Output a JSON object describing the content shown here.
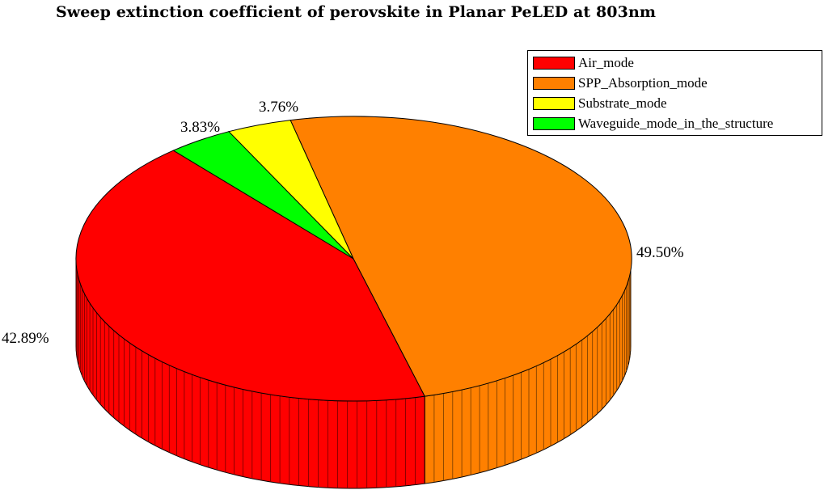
{
  "chart_data": {
    "type": "pie",
    "title": "Sweep extinction coefficient of perovskite in Planar PeLED at 803nm",
    "slices": [
      {
        "name": "Air_mode",
        "value": 42.89,
        "label": "42.89%",
        "color": "#ff0000"
      },
      {
        "name": "SPP_Absorption_mode",
        "value": 49.5,
        "label": "49.50%",
        "color": "#ff8000"
      },
      {
        "name": "Substrate_mode",
        "value": 3.76,
        "label": "3.76%",
        "color": "#ffff00"
      },
      {
        "name": "Waveguide_mode_in_the_structure",
        "value": 3.83,
        "label": "3.83%",
        "color": "#00ff00"
      }
    ],
    "style": "3d",
    "legend_position": "top-right"
  }
}
